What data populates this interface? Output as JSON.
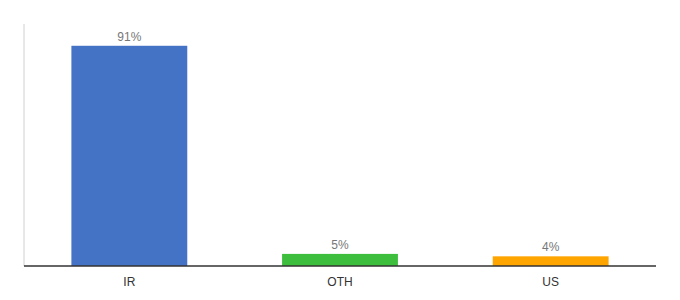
{
  "chart_data": {
    "type": "bar",
    "categories": [
      "IR",
      "OTH",
      "US"
    ],
    "values": [
      91,
      5,
      4
    ],
    "value_labels": [
      "91%",
      "5%",
      "4%"
    ],
    "colors": [
      "#4472C4",
      "#3DBF3D",
      "#FFA500"
    ],
    "ylim": [
      0,
      100
    ],
    "data_labels": true,
    "tick_labels": "x",
    "grid": false
  }
}
